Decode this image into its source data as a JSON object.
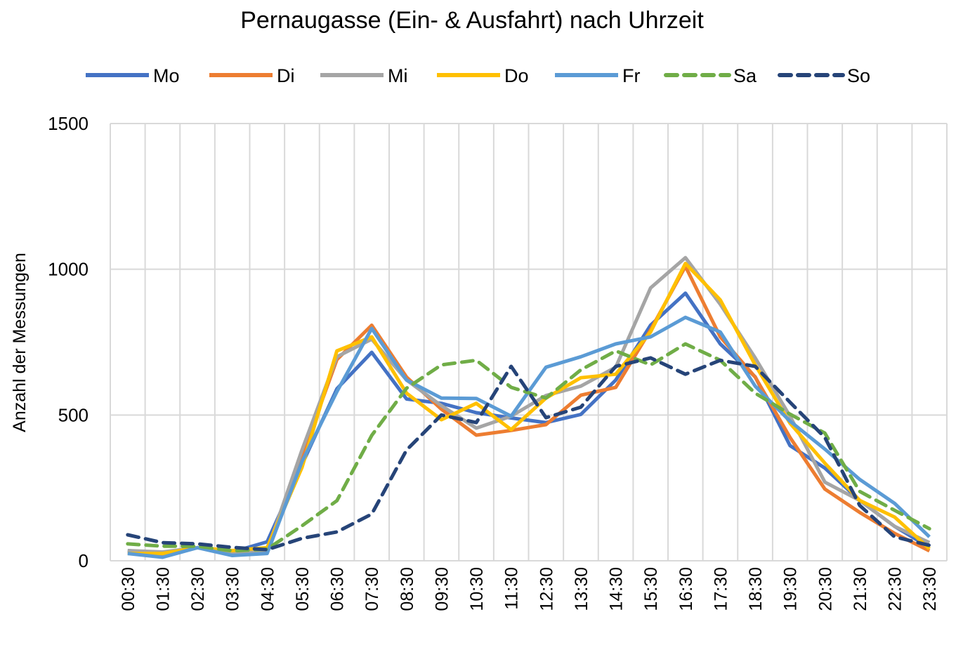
{
  "chart_data": {
    "type": "line",
    "title": "Pernaugasse (Ein- & Ausfahrt) nach Uhrzeit",
    "xlabel": "",
    "ylabel": "Anzahl der Messungen",
    "ylim": [
      0,
      1500
    ],
    "yticks": [
      "0",
      "500",
      "1000",
      "1500"
    ],
    "ytick_values": [
      0,
      500,
      1000,
      1500
    ],
    "grid": true,
    "legend_position": "top",
    "categories": [
      "00:30",
      "01:30",
      "02:30",
      "03:30",
      "04:30",
      "05:30",
      "06:30",
      "07:30",
      "08:30",
      "09:30",
      "10:30",
      "11:30",
      "12:30",
      "13:30",
      "14:30",
      "15:30",
      "16:30",
      "17:30",
      "18:30",
      "19:30",
      "20:30",
      "21:30",
      "22:30",
      "23:30"
    ],
    "series": [
      {
        "name": "Mo",
        "color": "#4472C4",
        "dashed": false,
        "values": [
          35,
          25,
          45,
          30,
          65,
          330,
          590,
          715,
          555,
          540,
          508,
          490,
          474,
          502,
          620,
          808,
          918,
          744,
          631,
          395,
          318,
          207,
          118,
          46
        ]
      },
      {
        "name": "Di",
        "color": "#ED7D31",
        "dashed": false,
        "values": [
          30,
          20,
          45,
          30,
          40,
          360,
          690,
          808,
          630,
          520,
          431,
          447,
          467,
          568,
          595,
          792,
          1010,
          768,
          630,
          423,
          246,
          166,
          94,
          34
        ]
      },
      {
        "name": "Mi",
        "color": "#A5A5A5",
        "dashed": false,
        "values": [
          35,
          30,
          45,
          25,
          35,
          380,
          700,
          760,
          620,
          532,
          455,
          496,
          567,
          599,
          664,
          936,
          1040,
          880,
          696,
          496,
          270,
          207,
          118,
          62
        ]
      },
      {
        "name": "Do",
        "color": "#FFC000",
        "dashed": false,
        "values": [
          25,
          25,
          45,
          35,
          45,
          320,
          720,
          768,
          575,
          484,
          540,
          450,
          558,
          628,
          640,
          785,
          1020,
          895,
          672,
          472,
          335,
          207,
          150,
          41
        ]
      },
      {
        "name": "Fr",
        "color": "#5B9BD5",
        "dashed": false,
        "values": [
          25,
          12,
          45,
          18,
          25,
          340,
          580,
          797,
          620,
          558,
          557,
          496,
          664,
          700,
          744,
          768,
          835,
          785,
          599,
          479,
          383,
          279,
          197,
          82
        ]
      },
      {
        "name": "Sa",
        "color": "#70AD47",
        "dashed": true,
        "values": [
          58,
          50,
          50,
          34,
          40,
          120,
          206,
          430,
          592,
          672,
          688,
          595,
          558,
          655,
          720,
          672,
          744,
          688,
          575,
          503,
          438,
          238,
          173,
          110
        ]
      },
      {
        "name": "So",
        "color": "#264478",
        "dashed": true,
        "values": [
          89,
          62,
          58,
          46,
          38,
          77,
          99,
          160,
          380,
          500,
          474,
          667,
          491,
          527,
          667,
          696,
          640,
          688,
          667,
          544,
          423,
          190,
          82,
          53
        ]
      }
    ]
  }
}
